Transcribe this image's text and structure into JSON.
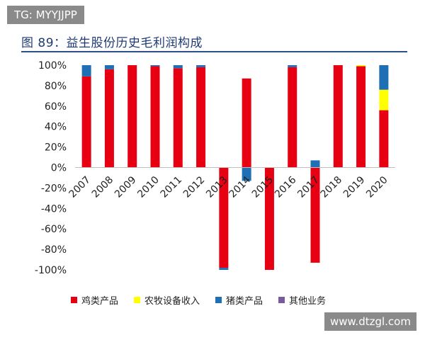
{
  "watermark_top": "TG: MYYJJPP",
  "watermark_bottom": "www.dtzgl.com",
  "figure_title": "图 89：益生股份历史毛利润构成",
  "chart_data": {
    "type": "bar",
    "stacked": true,
    "categories": [
      "2007",
      "2008",
      "2009",
      "2010",
      "2011",
      "2012",
      "2013",
      "2014",
      "2015",
      "2016",
      "2017",
      "2018",
      "2019",
      "2020"
    ],
    "series": [
      {
        "name": "鸡类产品",
        "color": "#e60012",
        "values": [
          89,
          96,
          100,
          99,
          97,
          98,
          -98,
          87,
          -100,
          98,
          -93,
          100,
          99,
          56
        ]
      },
      {
        "name": "农牧设备收入",
        "color": "#ffff00",
        "values": [
          0,
          0,
          0,
          0,
          0,
          0,
          0,
          0,
          0,
          0,
          0,
          0,
          1,
          20
        ]
      },
      {
        "name": "猪类产品",
        "color": "#1f6fb5",
        "values": [
          11,
          4,
          0,
          1,
          3,
          2,
          -2,
          -13,
          0,
          2,
          7,
          0,
          0,
          24
        ]
      },
      {
        "name": "其他业务",
        "color": "#7a5a9e",
        "values": [
          0,
          0,
          0,
          0,
          0,
          0,
          0,
          0,
          0,
          0,
          0,
          0,
          0,
          0
        ]
      }
    ],
    "yticks": [
      "100%",
      "80%",
      "60%",
      "40%",
      "20%",
      "0%",
      "-20%",
      "-40%",
      "-60%",
      "-80%",
      "-100%"
    ],
    "ylim": [
      -100,
      100
    ],
    "legend_position": "bottom",
    "grid": false
  }
}
